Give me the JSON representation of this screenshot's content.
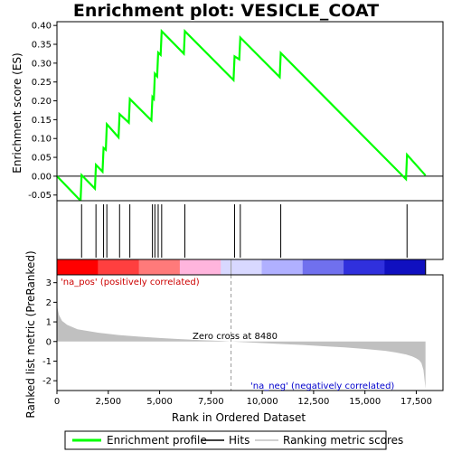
{
  "chart_data": {
    "type": "line",
    "title": "Enrichment plot: VESICLE_COAT",
    "xlabel": "Rank in Ordered Dataset",
    "ylabel_top": "Enrichment score (ES)",
    "ylabel_bottom": "Ranked list metric (PreRanked)",
    "x_ticks": [
      0,
      2500,
      5000,
      7500,
      10000,
      12500,
      15000,
      17500
    ],
    "x_tick_labels": [
      "0",
      "2,500",
      "5,000",
      "7,500",
      "10,000",
      "12,500",
      "15,000",
      "17,500"
    ],
    "es_ticks": [
      -0.05,
      0.0,
      0.05,
      0.1,
      0.15,
      0.2,
      0.25,
      0.3,
      0.35,
      0.4
    ],
    "es_tick_labels": [
      "-0.05",
      "0.00",
      "0.05",
      "0.10",
      "0.15",
      "0.20",
      "0.25",
      "0.30",
      "0.35",
      "0.40"
    ],
    "es_ylim": [
      -0.065,
      0.41
    ],
    "metric_ticks": [
      -2,
      -1,
      0,
      1,
      2,
      3
    ],
    "metric_tick_labels": [
      "-2",
      "-1",
      "0",
      "1",
      "2",
      "3"
    ],
    "metric_ylim": [
      -2.5,
      3.4
    ],
    "xlim": [
      0,
      18800
    ],
    "n_genes": 17950,
    "zero_cross": 8480,
    "grid": false,
    "series": [
      {
        "name": "Enrichment profile",
        "color": "#00ff00",
        "x": [
          0,
          1150,
          1200,
          1850,
          1900,
          2220,
          2270,
          2380,
          2430,
          3000,
          3050,
          3500,
          3550,
          4600,
          4650,
          4720,
          4770,
          4880,
          4930,
          5050,
          5100,
          6180,
          6230,
          8600,
          8650,
          8880,
          8930,
          10850,
          10900,
          17000,
          17050,
          17950
        ],
        "y": [
          0.0,
          -0.065,
          0.003,
          -0.033,
          0.03,
          0.012,
          0.075,
          0.07,
          0.138,
          0.103,
          0.165,
          0.142,
          0.205,
          0.148,
          0.21,
          0.205,
          0.272,
          0.265,
          0.328,
          0.322,
          0.385,
          0.325,
          0.385,
          0.255,
          0.318,
          0.31,
          0.368,
          0.263,
          0.327,
          -0.008,
          0.057,
          0.002
        ]
      },
      {
        "name": "Hits",
        "color": "#000000",
        "positions": [
          1200,
          1900,
          2270,
          2430,
          3050,
          3550,
          4650,
          4770,
          4930,
          5100,
          6230,
          8650,
          8930,
          10900,
          17050
        ]
      },
      {
        "name": "Ranking metric scores",
        "color": "#c0c0c0",
        "x": [
          0,
          30,
          100,
          250,
          500,
          1000,
          2000,
          3000,
          4000,
          5000,
          6000,
          7000,
          8000,
          8480,
          9000,
          10000,
          11000,
          12000,
          13000,
          14000,
          15000,
          16000,
          16500,
          17000,
          17300,
          17500,
          17650,
          17750,
          17850,
          17950
        ],
        "y": [
          3.0,
          1.7,
          1.35,
          1.05,
          0.85,
          0.62,
          0.45,
          0.33,
          0.25,
          0.18,
          0.12,
          0.07,
          0.03,
          0.0,
          -0.03,
          -0.08,
          -0.13,
          -0.18,
          -0.24,
          -0.3,
          -0.38,
          -0.48,
          -0.56,
          -0.66,
          -0.76,
          -0.86,
          -0.96,
          -1.1,
          -1.45,
          -2.4
        ]
      }
    ],
    "heatmap_colors": [
      "#ff0000",
      "#ff3f3f",
      "#ff7a7a",
      "#ffb5dd",
      "#d8d8ff",
      "#b0b0ff",
      "#7070ee",
      "#3030dd",
      "#1010c0"
    ],
    "annotations": {
      "pos_label": "'na_pos' (positively correlated)",
      "neg_label": "'na_neg' (negatively correlated)",
      "zero_label": "Zero cross at 8480"
    },
    "legend": {
      "position": "bottom",
      "items": [
        "Enrichment profile",
        "Hits",
        "Ranking metric scores"
      ]
    }
  }
}
